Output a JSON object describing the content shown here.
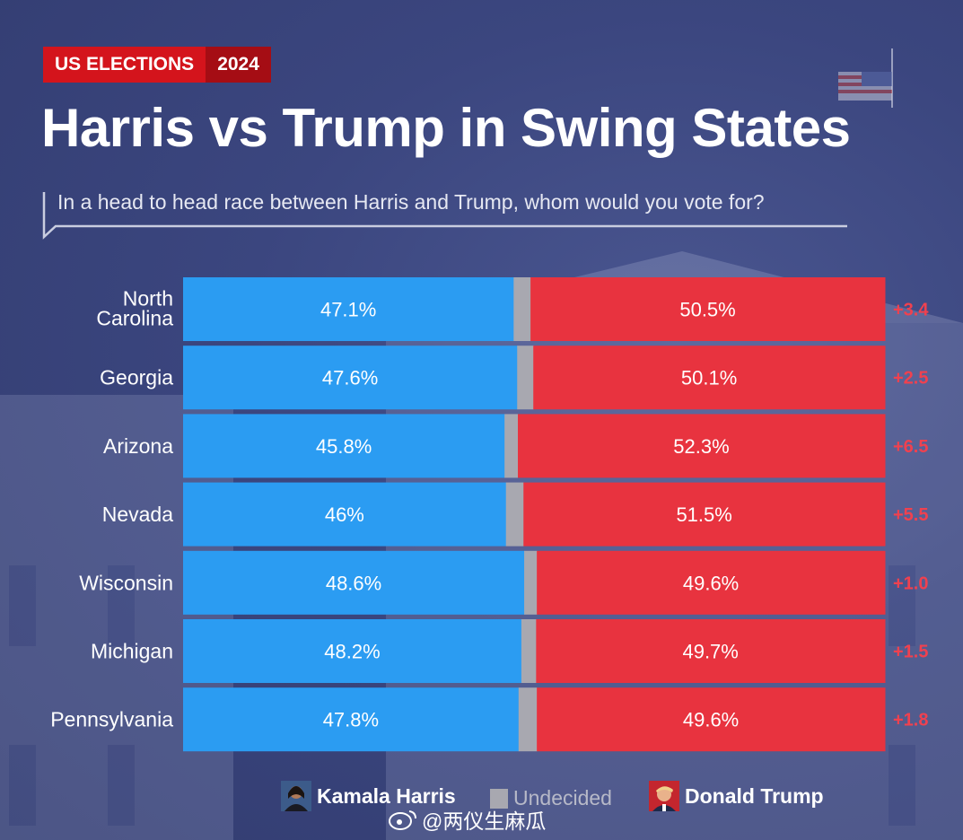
{
  "header": {
    "tag_primary": "US ELECTIONS",
    "tag_secondary": "2024",
    "title": "Harris vs Trump in Swing States",
    "subtitle": "In a head to head race between Harris and Trump, whom would you vote for?"
  },
  "colors": {
    "harris": "#2b9cf2",
    "trump": "#e8333f",
    "undecided": "#a8a8b0",
    "margin_text": "#f0414f",
    "background": "#3b467f"
  },
  "chart_data": {
    "type": "bar",
    "stacked": true,
    "orientation": "horizontal",
    "categories": [
      "North Carolina",
      "Georgia",
      "Arizona",
      "Nevada",
      "Wisconsin",
      "Michigan",
      "Pennsylvania"
    ],
    "category_label_lines": [
      [
        "North",
        "Carolina"
      ],
      [
        "Georgia"
      ],
      [
        "Arizona"
      ],
      [
        "Nevada"
      ],
      [
        "Wisconsin"
      ],
      [
        "Michigan"
      ],
      [
        "Pennsylvania"
      ]
    ],
    "series": [
      {
        "name": "Kamala Harris",
        "values": [
          47.1,
          47.6,
          45.8,
          46,
          48.6,
          48.2,
          47.8
        ],
        "labels": [
          "47.1%",
          "47.6%",
          "45.8%",
          "46%",
          "48.6%",
          "48.2%",
          "47.8%"
        ]
      },
      {
        "name": "Undecided",
        "values": [
          2.4,
          2.3,
          1.9,
          2.5,
          1.8,
          2.1,
          2.6
        ]
      },
      {
        "name": "Donald Trump",
        "values": [
          50.5,
          50.1,
          52.3,
          51.5,
          49.6,
          49.7,
          49.6
        ],
        "labels": [
          "50.5%",
          "50.1%",
          "52.3%",
          "51.5%",
          "49.6%",
          "49.7%",
          "49.6%"
        ]
      }
    ],
    "margins": [
      "+3.4",
      "+2.5",
      "+6.5",
      "+5.5",
      "+1.0",
      "+1.5",
      "+1.8"
    ],
    "xlim": [
      0,
      100
    ],
    "grid": false,
    "legend_position": "bottom"
  },
  "legend": {
    "harris": "Kamala Harris",
    "undecided": "Undecided",
    "trump": "Donald Trump"
  },
  "watermark": "@两仪生麻瓜"
}
